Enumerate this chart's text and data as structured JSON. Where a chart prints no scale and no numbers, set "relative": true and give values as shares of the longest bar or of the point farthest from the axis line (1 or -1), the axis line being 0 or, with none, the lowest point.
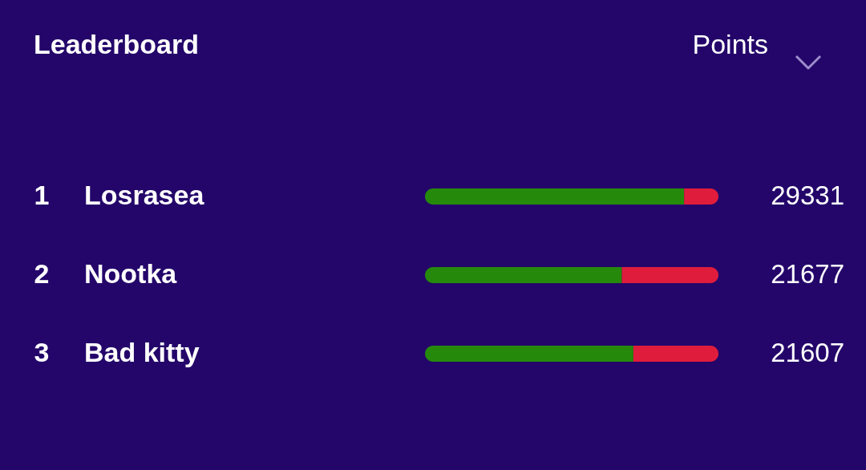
{
  "chart_data": {
    "type": "bar",
    "orientation": "horizontal",
    "stacked": true,
    "relative": true,
    "title": "Leaderboard",
    "categories": [
      "Losrasea",
      "Nootka",
      "Bad kitty"
    ],
    "series": [
      {
        "color": "#258a0c",
        "values": [
          0.883,
          0.671,
          0.71
        ]
      },
      {
        "color": "#e01c3c",
        "values": [
          0.117,
          0.329,
          0.29
        ]
      }
    ],
    "annotations": [
      "Points",
      "1",
      "2",
      "3",
      "29331",
      "21677",
      "21607"
    ]
  }
}
